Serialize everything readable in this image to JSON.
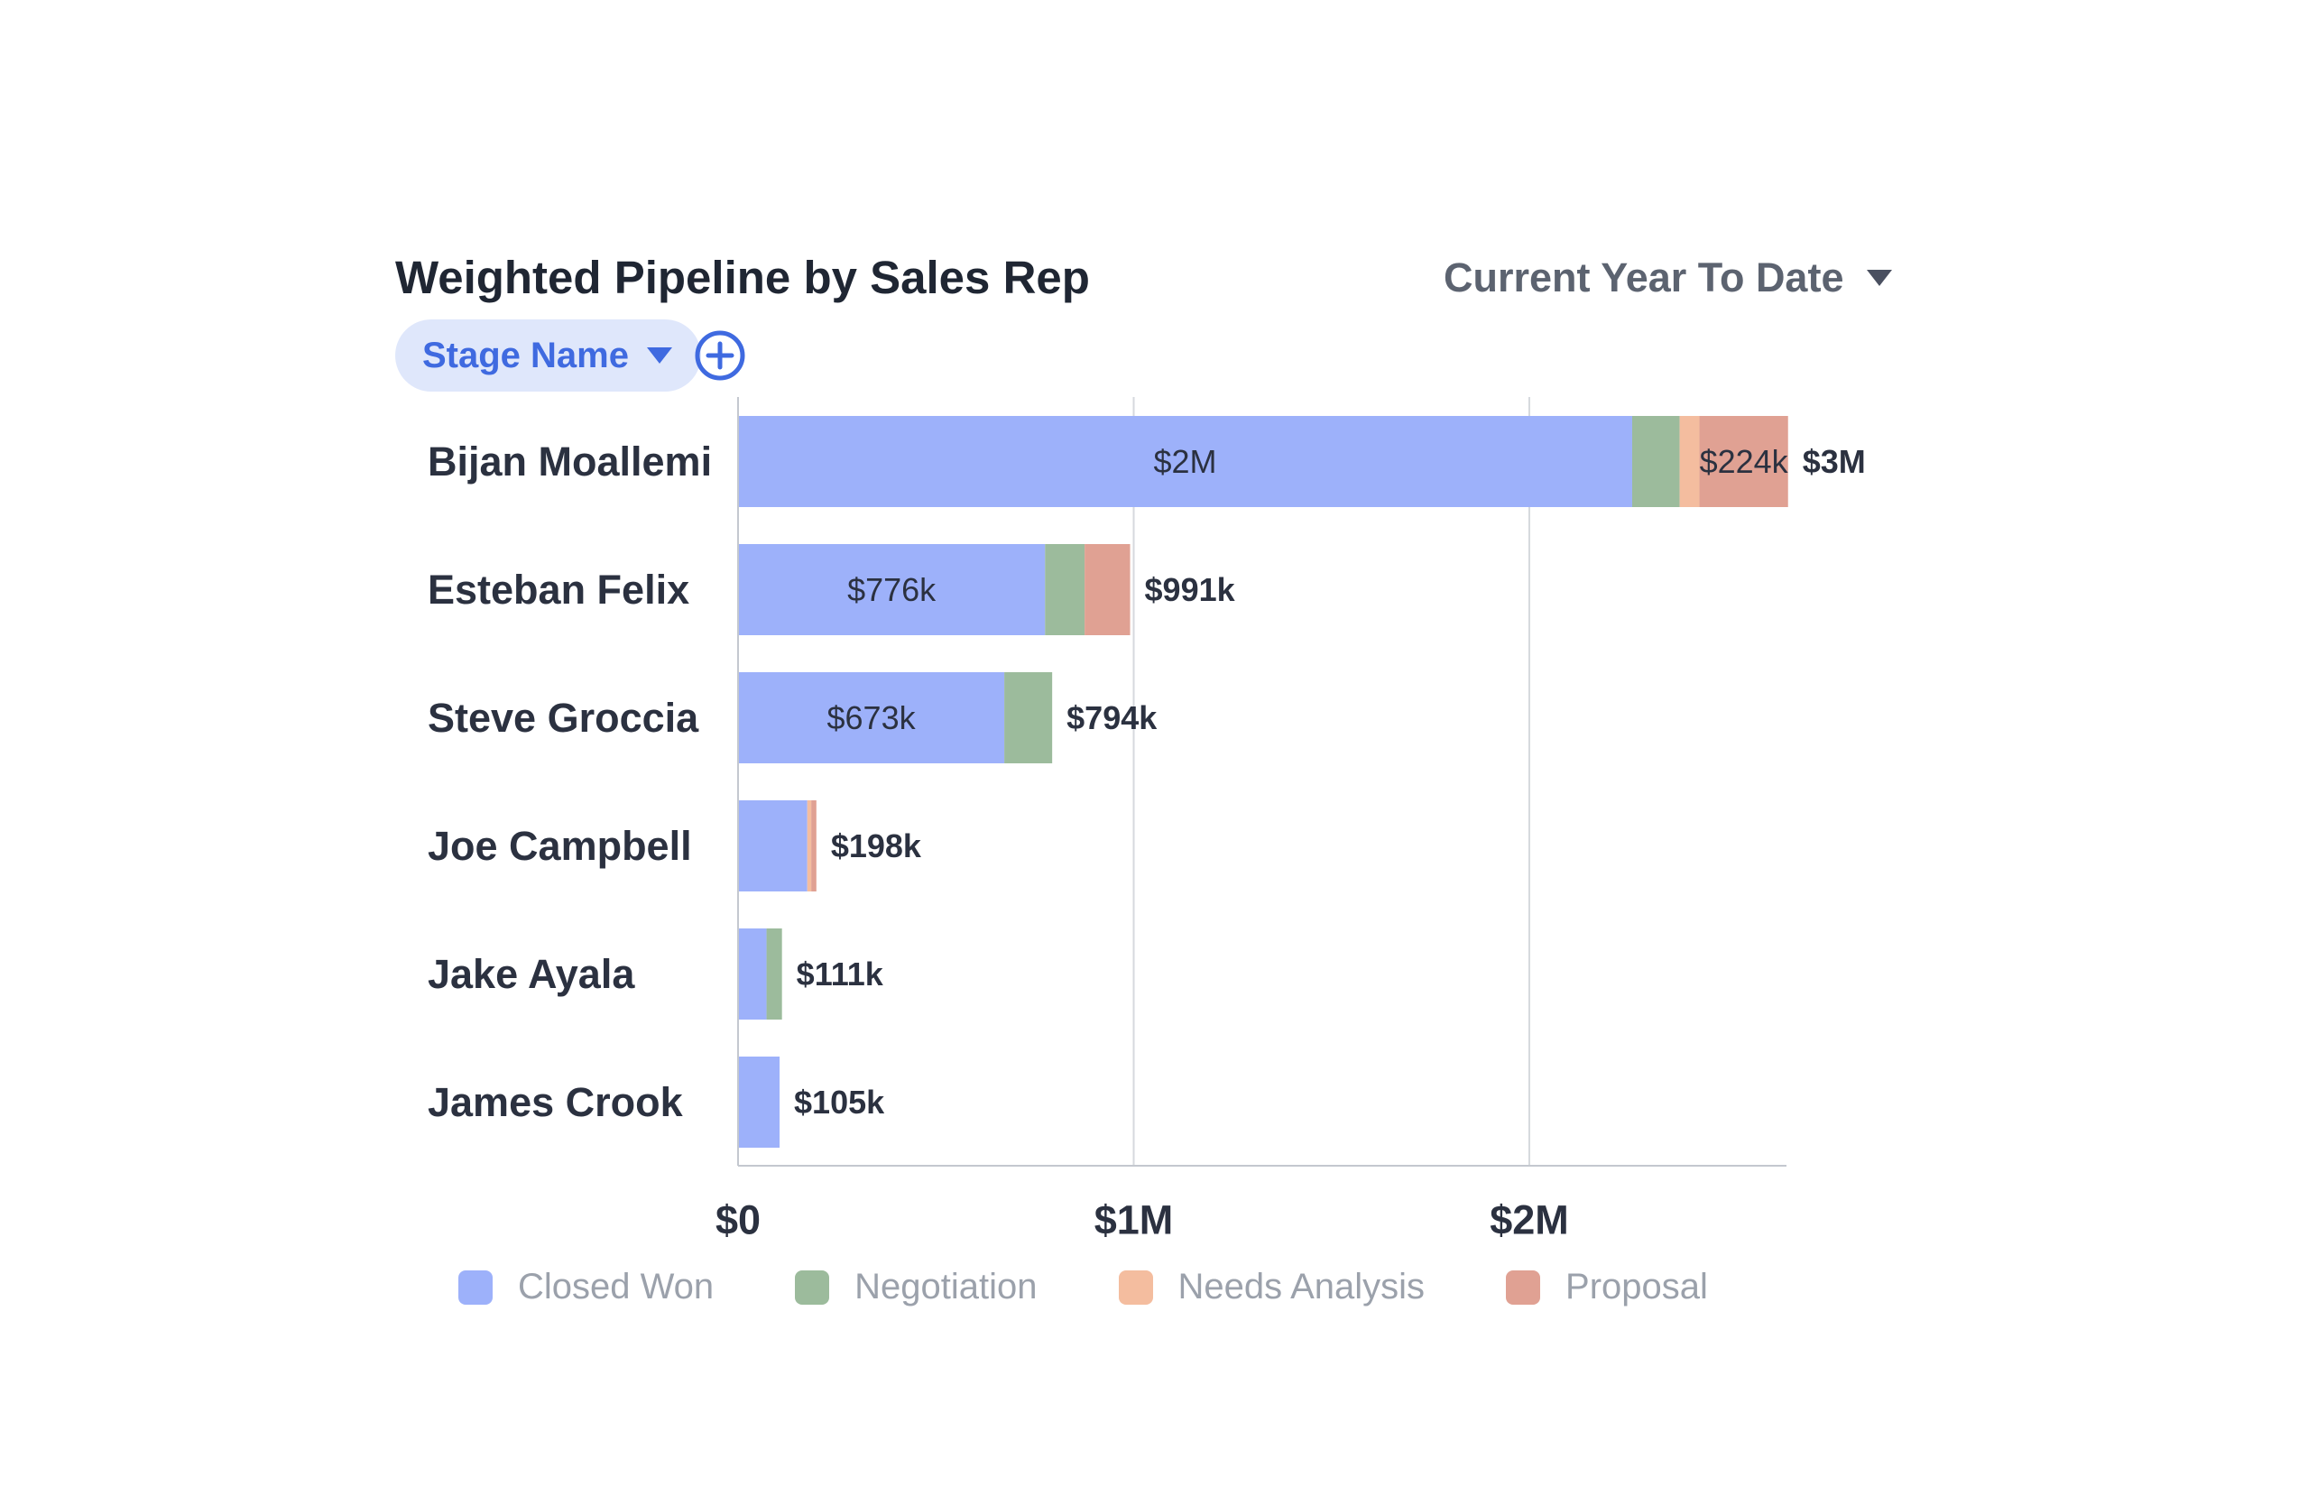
{
  "header": {
    "title": "Weighted Pipeline by Sales Rep",
    "period_label": "Current Year To Date",
    "filter_label": "Stage Name"
  },
  "icons": {
    "period_dropdown": "chevron-down-icon",
    "filter_dropdown": "chevron-down-icon",
    "add_filter": "plus-circle-icon"
  },
  "colors": {
    "Closed Won": "#9db1fa",
    "Negotiation": "#9cbb9c",
    "Needs Analysis": "#f4bd9f",
    "Proposal": "#e0a193",
    "accent": "#3f6ae0"
  },
  "chart_data": {
    "type": "bar",
    "orientation": "horizontal",
    "stacked": true,
    "categories": [
      "Bijan Moallemi",
      "Esteban Felix",
      "Steve Groccia",
      "Joe Campbell",
      "Jake Ayala",
      "James Crook"
    ],
    "series": [
      {
        "name": "Closed Won",
        "values": [
          2260000,
          776000,
          673000,
          175000,
          72000,
          105000
        ]
      },
      {
        "name": "Negotiation",
        "values": [
          120000,
          100000,
          121000,
          0,
          39000,
          0
        ]
      },
      {
        "name": "Needs Analysis",
        "values": [
          50000,
          0,
          0,
          10000,
          0,
          0
        ]
      },
      {
        "name": "Proposal",
        "values": [
          224000,
          115000,
          0,
          13000,
          0,
          0
        ]
      }
    ],
    "segment_labels": [
      [
        "$2M",
        "",
        "",
        "$224k"
      ],
      [
        "$776k",
        "",
        "",
        ""
      ],
      [
        "$673k",
        "",
        "",
        ""
      ],
      [
        "",
        "",
        "",
        ""
      ],
      [
        "",
        "",
        "",
        ""
      ],
      [
        "",
        "",
        "",
        ""
      ]
    ],
    "total_labels": [
      "$3M",
      "$991k",
      "$794k",
      "$198k",
      "$111k",
      "$105k"
    ],
    "x_ticks": [
      0,
      1000000,
      2000000
    ],
    "x_tick_labels": [
      "$0",
      "$1M",
      "$2M"
    ],
    "xlim": [
      0,
      2650000
    ],
    "grid": true,
    "legend_position": "bottom",
    "legend": [
      "Closed Won",
      "Negotiation",
      "Needs Analysis",
      "Proposal"
    ]
  }
}
